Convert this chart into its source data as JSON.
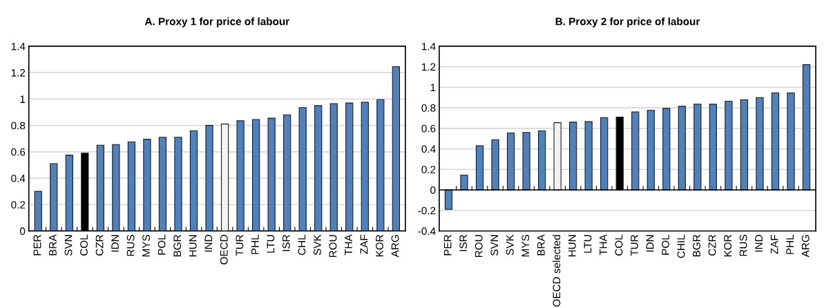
{
  "chart_data": [
    {
      "type": "bar",
      "title": "A. Proxy 1 for price of labour",
      "categories": [
        "PER",
        "BRA",
        "SVN",
        "COL",
        "CZR",
        "IDN",
        "RUS",
        "MYS",
        "POL",
        "BGR",
        "HUN",
        "IND",
        "OECD",
        "TUR",
        "PHL",
        "LTU",
        "ISR",
        "CHL",
        "SVK",
        "ROU",
        "THA",
        "ZAF",
        "KOR",
        "ARG"
      ],
      "values": [
        0.3,
        0.51,
        0.575,
        0.59,
        0.65,
        0.655,
        0.675,
        0.695,
        0.71,
        0.71,
        0.76,
        0.8,
        0.81,
        0.835,
        0.845,
        0.855,
        0.88,
        0.935,
        0.95,
        0.965,
        0.97,
        0.975,
        0.995,
        1.245
      ],
      "colors": [
        "#4f81bd",
        "#4f81bd",
        "#4f81bd",
        "#000000",
        "#4f81bd",
        "#4f81bd",
        "#4f81bd",
        "#4f81bd",
        "#4f81bd",
        "#4f81bd",
        "#4f81bd",
        "#4f81bd",
        "#f2f2f2",
        "#4f81bd",
        "#4f81bd",
        "#4f81bd",
        "#4f81bd",
        "#4f81bd",
        "#4f81bd",
        "#4f81bd",
        "#4f81bd",
        "#4f81bd",
        "#4f81bd",
        "#4f81bd"
      ],
      "ylim": [
        0,
        1.4
      ],
      "yticks": [
        0,
        0.2,
        0.4,
        0.6,
        0.8,
        1,
        1.2,
        1.4
      ],
      "grid": "y"
    },
    {
      "type": "bar",
      "title": "B. Proxy 2 for price of labour",
      "categories": [
        "PER",
        "ISR",
        "ROU",
        "SVN",
        "SVK",
        "MYS",
        "BRA",
        "OECD selected",
        "HUN",
        "LTU",
        "THA",
        "COL",
        "TUR",
        "IDN",
        "POL",
        "CHIL",
        "BGR",
        "CZR",
        "KOR",
        "RUS",
        "IND",
        "ZAF",
        "PHL",
        "ARG"
      ],
      "values": [
        -0.19,
        0.145,
        0.43,
        0.49,
        0.555,
        0.56,
        0.575,
        0.655,
        0.66,
        0.665,
        0.705,
        0.71,
        0.76,
        0.775,
        0.795,
        0.815,
        0.835,
        0.835,
        0.865,
        0.88,
        0.9,
        0.945,
        0.945,
        1.22
      ],
      "colors": [
        "#4f81bd",
        "#4f81bd",
        "#4f81bd",
        "#4f81bd",
        "#4f81bd",
        "#4f81bd",
        "#4f81bd",
        "#f2f2f2",
        "#4f81bd",
        "#4f81bd",
        "#4f81bd",
        "#000000",
        "#4f81bd",
        "#4f81bd",
        "#4f81bd",
        "#4f81bd",
        "#4f81bd",
        "#4f81bd",
        "#4f81bd",
        "#4f81bd",
        "#4f81bd",
        "#4f81bd",
        "#4f81bd",
        "#4f81bd"
      ],
      "ylim": [
        -0.4,
        1.4
      ],
      "yticks": [
        -0.4,
        -0.2,
        0,
        0.2,
        0.4,
        0.6,
        0.8,
        1,
        1.2,
        1.4
      ],
      "grid": "y"
    }
  ]
}
